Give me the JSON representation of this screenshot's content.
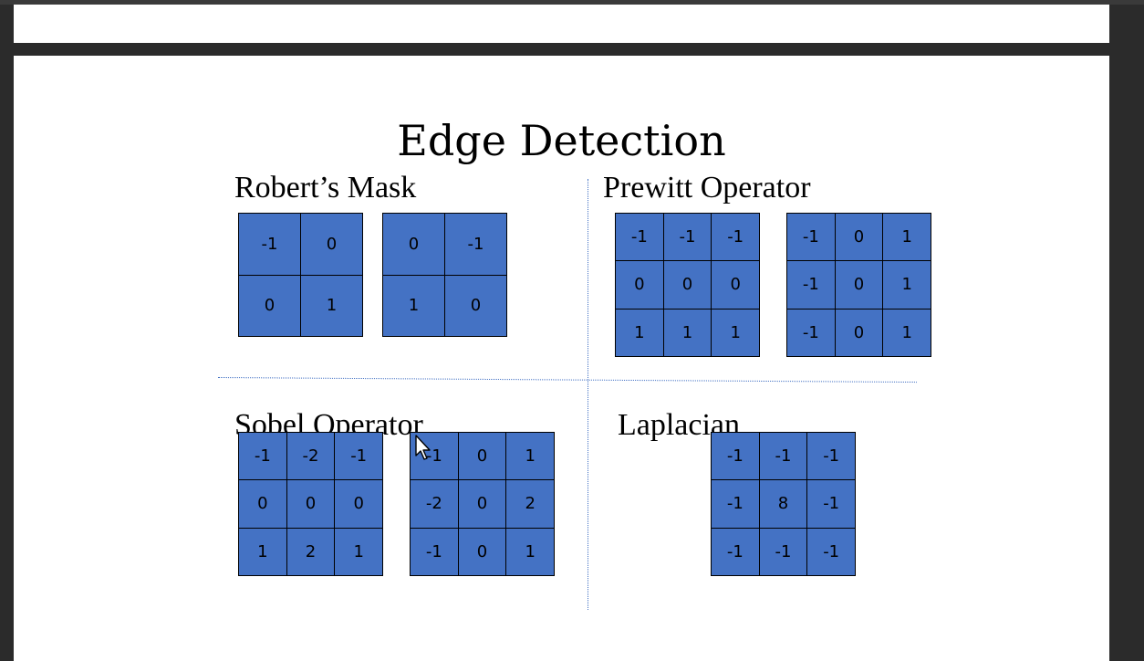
{
  "slide": {
    "title": "Edge Detection",
    "sections": {
      "roberts": {
        "label": "Robert’s Mask",
        "masks": [
          [
            [
              "-1",
              "0"
            ],
            [
              "0",
              "1"
            ]
          ],
          [
            [
              "0",
              "-1"
            ],
            [
              "1",
              "0"
            ]
          ]
        ]
      },
      "prewitt": {
        "label": "Prewitt Operator",
        "masks": [
          [
            [
              "-1",
              "-1",
              "-1"
            ],
            [
              "0",
              "0",
              "0"
            ],
            [
              "1",
              "1",
              "1"
            ]
          ],
          [
            [
              "-1",
              "0",
              "1"
            ],
            [
              "-1",
              "0",
              "1"
            ],
            [
              "-1",
              "0",
              "1"
            ]
          ]
        ]
      },
      "sobel": {
        "label": "Sobel Operator",
        "masks": [
          [
            [
              "-1",
              "-2",
              "-1"
            ],
            [
              "0",
              "0",
              "0"
            ],
            [
              "1",
              "2",
              "1"
            ]
          ],
          [
            [
              "-1",
              "0",
              "1"
            ],
            [
              "-2",
              "0",
              "2"
            ],
            [
              "-1",
              "0",
              "1"
            ]
          ]
        ]
      },
      "laplacian": {
        "label": "Laplacian",
        "masks": [
          [
            [
              "-1",
              "-1",
              "-1"
            ],
            [
              "-1",
              "8",
              "-1"
            ],
            [
              "-1",
              "-1",
              "-1"
            ]
          ]
        ]
      }
    }
  },
  "colors": {
    "mask_cell": "#4472c4",
    "divider": "#4472c4",
    "viewer_background": "#2b2b2b"
  },
  "icons": {
    "cursor": "mouse-pointer-icon"
  }
}
